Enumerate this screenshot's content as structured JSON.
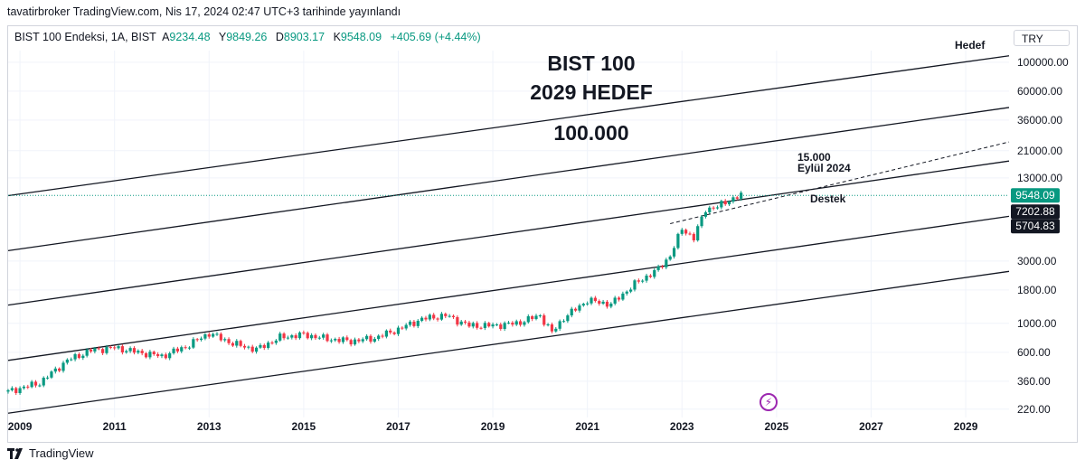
{
  "publisher_line": "tavatirbroker TradingView.com, Nis 17, 2024 02:47 UTC+3 tarihinde yayınlandı",
  "legend": {
    "symbol": "BIST 100 Endeksi, 1A, BIST",
    "o_label": "A",
    "o_value": "9234.48",
    "h_label": "Y",
    "h_value": "9849.26",
    "l_label": "D",
    "l_value": "8903.17",
    "c_label": "K",
    "c_value": "9548.09",
    "change": "+405.69 (+4.44%)"
  },
  "currency_button": "TRY",
  "footer_brand": "TradingView",
  "icons": {
    "brand": "tradingview-logo-icon",
    "event": "lightning-event-icon"
  },
  "colors": {
    "up": "#089981",
    "down": "#f23645",
    "price_line": "#089981",
    "event": "#9c27b0"
  },
  "annotations": {
    "title_1": "BIST 100",
    "title_2": "2029 HEDEF",
    "target_value": "100.000",
    "target_label": "Hedef",
    "mid_target_1": "15.000",
    "mid_target_2": "Eylül 2024",
    "support_label": "Destek"
  },
  "price_labels": [
    {
      "text": "9548.09",
      "style": "green"
    },
    {
      "text": "7202.88",
      "style": "black"
    },
    {
      "text": "5704.83",
      "style": "black"
    }
  ],
  "chart_data": {
    "type": "candlestick",
    "scale": "log",
    "ylim": [
      190,
      135000
    ],
    "xlim": [
      "2008-10",
      "2029-12"
    ],
    "x_ticks": [
      "2009",
      "2011",
      "2013",
      "2015",
      "2017",
      "2019",
      "2021",
      "2023",
      "2025",
      "2027",
      "2029"
    ],
    "y_ticks": [
      {
        "value": 100000,
        "label": "100000.00"
      },
      {
        "value": 60000,
        "label": "60000.00"
      },
      {
        "value": 36000,
        "label": "36000.00"
      },
      {
        "value": 21000,
        "label": "21000.00"
      },
      {
        "value": 13000,
        "label": "13000.00"
      },
      {
        "value": 3000,
        "label": "3000.00"
      },
      {
        "value": 1800,
        "label": "1800.00"
      },
      {
        "value": 1000,
        "label": "1000.00"
      },
      {
        "value": 600,
        "label": "600.00"
      },
      {
        "value": 360,
        "label": "360.00"
      },
      {
        "value": 220,
        "label": "220.00"
      }
    ],
    "last_price": 9548.09,
    "channel_lines": [
      {
        "name": "band-1",
        "start": [
          "2008-10",
          9500
        ],
        "end": [
          "2029-12",
          112000
        ]
      },
      {
        "name": "band-2",
        "start": [
          "2008-10",
          3600
        ],
        "end": [
          "2029-12",
          45000
        ]
      },
      {
        "name": "band-3",
        "start": [
          "2008-10",
          1380
        ],
        "end": [
          "2029-12",
          17500
        ]
      },
      {
        "name": "band-4",
        "start": [
          "2008-10",
          520
        ],
        "end": [
          "2029-12",
          6600
        ]
      },
      {
        "name": "band-5",
        "start": [
          "2008-10",
          205
        ],
        "end": [
          "2029-12",
          2500
        ]
      }
    ],
    "trend_lines": [
      {
        "name": "support-dashed",
        "start": [
          "2022-10",
          5800
        ],
        "end": [
          "2029-12",
          24500
        ]
      }
    ],
    "candles_semiannual": [
      {
        "t": "2008-10",
        "close": 300
      },
      {
        "t": "2009-06",
        "close": 350
      },
      {
        "t": "2010-01",
        "close": 520
      },
      {
        "t": "2010-07",
        "close": 620
      },
      {
        "t": "2011-01",
        "close": 650
      },
      {
        "t": "2011-07",
        "close": 600
      },
      {
        "t": "2012-01",
        "close": 560
      },
      {
        "t": "2012-07",
        "close": 660
      },
      {
        "t": "2013-01",
        "close": 840
      },
      {
        "t": "2013-07",
        "close": 700
      },
      {
        "t": "2014-01",
        "close": 630
      },
      {
        "t": "2014-07",
        "close": 780
      },
      {
        "t": "2015-01",
        "close": 820
      },
      {
        "t": "2015-07",
        "close": 760
      },
      {
        "t": "2016-01",
        "close": 730
      },
      {
        "t": "2016-07",
        "close": 770
      },
      {
        "t": "2017-01",
        "close": 900
      },
      {
        "t": "2017-07",
        "close": 1080
      },
      {
        "t": "2018-01",
        "close": 1150
      },
      {
        "t": "2018-07",
        "close": 960
      },
      {
        "t": "2019-01",
        "close": 960
      },
      {
        "t": "2019-07",
        "close": 1000
      },
      {
        "t": "2020-01",
        "close": 1150
      },
      {
        "t": "2020-04",
        "close": 850
      },
      {
        "t": "2020-07",
        "close": 1100
      },
      {
        "t": "2021-01",
        "close": 1500
      },
      {
        "t": "2021-07",
        "close": 1400
      },
      {
        "t": "2022-01",
        "close": 2000
      },
      {
        "t": "2022-07",
        "close": 2600
      },
      {
        "t": "2022-10",
        "close": 3300
      },
      {
        "t": "2023-01",
        "close": 5300
      },
      {
        "t": "2023-04",
        "close": 4500
      },
      {
        "t": "2023-07",
        "close": 7500
      },
      {
        "t": "2023-10",
        "close": 7800
      },
      {
        "t": "2024-01",
        "close": 8800
      },
      {
        "t": "2024-04",
        "close": 9548.09
      }
    ]
  }
}
